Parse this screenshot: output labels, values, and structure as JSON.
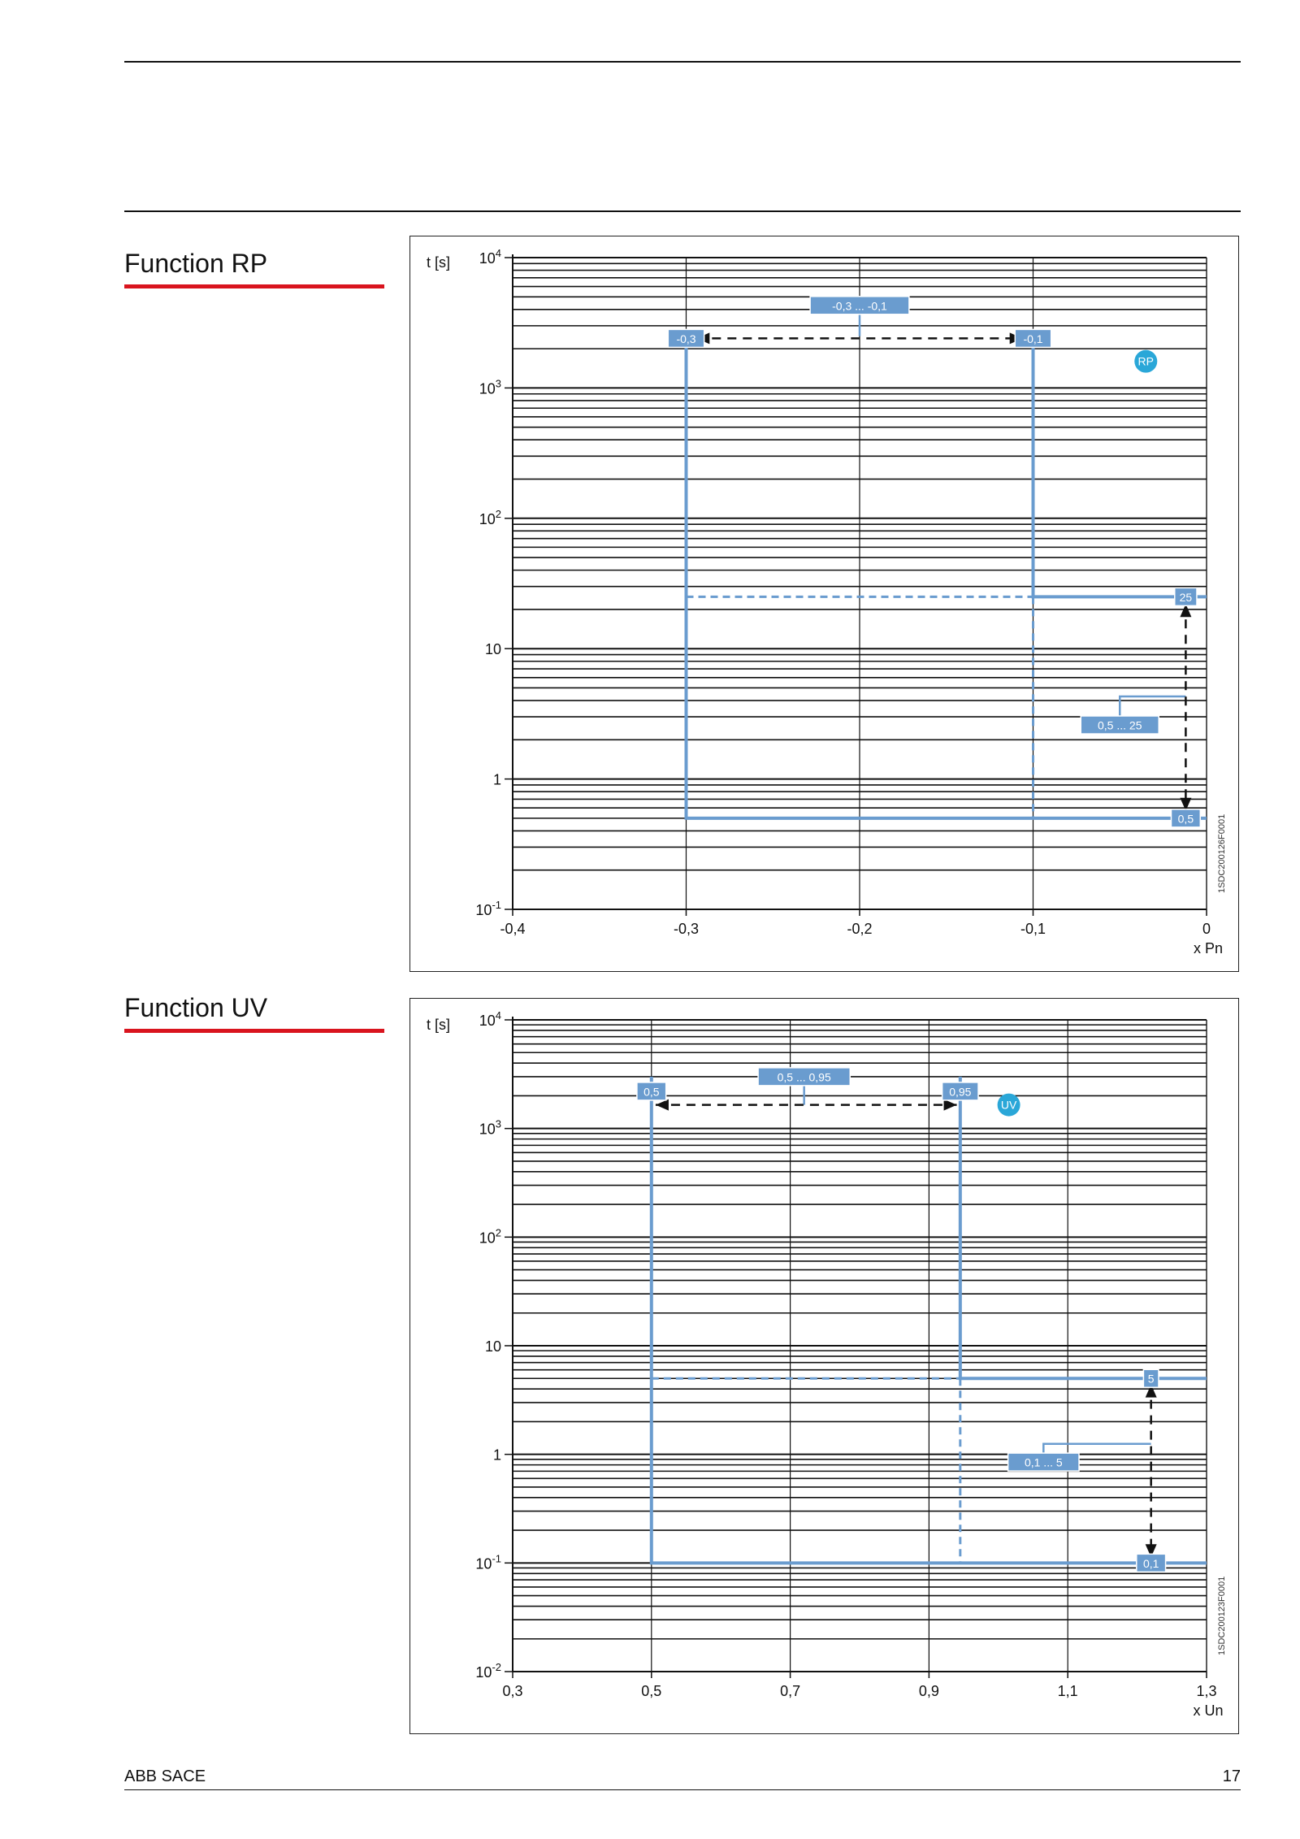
{
  "page": {
    "footer_left": "ABB SACE",
    "page_number": "17",
    "accent_color": "#d9141e",
    "curve_color": "#6a9ccf",
    "badge_color": "#2aa7d8"
  },
  "chart_data": [
    {
      "type": "line",
      "section_title": "Function RP",
      "ylabel": "t [s]",
      "xlabel": "x Pn",
      "x_scale": "linear",
      "y_scale": "log",
      "xlim": [
        -0.4,
        0
      ],
      "ylim": [
        0.1,
        10000
      ],
      "x_ticks": [
        -0.4,
        -0.3,
        -0.2,
        -0.1,
        0
      ],
      "x_tick_labels": [
        "-0,4",
        "-0,3",
        "-0,2",
        "-0,1",
        "0"
      ],
      "y_ticks": [
        {
          "value": 10000,
          "base": "10",
          "exp": "4"
        },
        {
          "value": 1000,
          "base": "10",
          "exp": "3"
        },
        {
          "value": 100,
          "base": "10",
          "exp": "2"
        },
        {
          "value": 10,
          "base": "10",
          "exp": ""
        },
        {
          "value": 1,
          "base": "1",
          "exp": ""
        },
        {
          "value": 0.1,
          "base": "10",
          "exp": "-1"
        }
      ],
      "badge": "RP",
      "badge_pos": {
        "x": -0.035,
        "y": 1600
      },
      "code": "1SDC200126F0001",
      "series": [
        {
          "style": "solid",
          "x": [
            -0.3,
            -0.3,
            0
          ],
          "y": [
            2500,
            0.5,
            0.5
          ]
        },
        {
          "style": "solid",
          "x": [
            -0.1,
            -0.1,
            0
          ],
          "y": [
            2500,
            25,
            25
          ]
        },
        {
          "style": "dashed",
          "x": [
            -0.3,
            -0.1
          ],
          "y": [
            25,
            25
          ]
        },
        {
          "style": "dashed",
          "x": [
            -0.1,
            -0.1
          ],
          "y": [
            25,
            0.5
          ]
        }
      ],
      "labels": [
        {
          "text": "-0,3 ... -0,1",
          "x": -0.2,
          "y": 4300
        },
        {
          "text": "-0,3",
          "x": -0.3,
          "y": 2400
        },
        {
          "text": "-0,1",
          "x": -0.1,
          "y": 2400
        },
        {
          "text": "25",
          "x": -0.012,
          "y": 25
        },
        {
          "text": "0,5 ... 25",
          "x": -0.05,
          "y": 2.6
        },
        {
          "text": "0,5",
          "x": -0.012,
          "y": 0.5
        }
      ],
      "leaders": [
        {
          "x": [
            -0.2,
            -0.2
          ],
          "y": [
            4000,
            2500
          ]
        },
        {
          "x": [
            -0.05,
            -0.05,
            -0.012
          ],
          "y": [
            2.9,
            4.3,
            4.3
          ]
        }
      ],
      "arrows": [
        {
          "x1": -0.294,
          "y1": 2400,
          "x2": -0.106,
          "y2": 2400
        },
        {
          "x1": -0.012,
          "y1": 22,
          "x2": -0.012,
          "y2": 0.57
        }
      ]
    },
    {
      "type": "line",
      "section_title": "Function UV",
      "ylabel": "t [s]",
      "xlabel": "x Un",
      "x_scale": "linear",
      "y_scale": "log",
      "xlim": [
        0.3,
        1.3
      ],
      "ylim": [
        0.01,
        10000
      ],
      "x_ticks": [
        0.3,
        0.5,
        0.7,
        0.9,
        1.1,
        1.3
      ],
      "x_tick_labels": [
        "0,3",
        "0,5",
        "0,7",
        "0,9",
        "1,1",
        "1,3"
      ],
      "y_ticks": [
        {
          "value": 10000,
          "base": "10",
          "exp": "4"
        },
        {
          "value": 1000,
          "base": "10",
          "exp": "3"
        },
        {
          "value": 100,
          "base": "10",
          "exp": "2"
        },
        {
          "value": 10,
          "base": "10",
          "exp": ""
        },
        {
          "value": 1,
          "base": "1",
          "exp": ""
        },
        {
          "value": 0.1,
          "base": "10",
          "exp": "-1"
        },
        {
          "value": 0.01,
          "base": "10",
          "exp": "-2"
        }
      ],
      "badge": "UV",
      "badge_pos": {
        "x": 1.015,
        "y": 1650
      },
      "code": "1SDC200123F0001",
      "series": [
        {
          "style": "solid",
          "x": [
            0.5,
            0.5,
            1.3
          ],
          "y": [
            3000,
            0.1,
            0.1
          ]
        },
        {
          "style": "solid",
          "x": [
            0.945,
            0.945,
            1.3
          ],
          "y": [
            3000,
            5,
            5
          ]
        },
        {
          "style": "dashed",
          "x": [
            0.5,
            0.945
          ],
          "y": [
            5,
            5
          ]
        },
        {
          "style": "dashed",
          "x": [
            0.945,
            0.945
          ],
          "y": [
            5,
            0.1
          ]
        }
      ],
      "labels": [
        {
          "text": "0,5 ... 0,95",
          "x": 0.72,
          "y": 3000
        },
        {
          "text": "0,5",
          "x": 0.5,
          "y": 2200
        },
        {
          "text": "0,95",
          "x": 0.945,
          "y": 2200
        },
        {
          "text": "5",
          "x": 1.22,
          "y": 5
        },
        {
          "text": "0,1 ... 5",
          "x": 1.065,
          "y": 0.85
        },
        {
          "text": "0,1",
          "x": 1.22,
          "y": 0.1
        }
      ],
      "leaders": [
        {
          "x": [
            0.72,
            0.72
          ],
          "y": [
            2700,
            1650
          ]
        },
        {
          "x": [
            1.065,
            1.065,
            1.22
          ],
          "y": [
            0.95,
            1.25,
            1.25
          ]
        }
      ],
      "arrows": [
        {
          "x1": 0.506,
          "y1": 1650,
          "x2": 0.94,
          "y2": 1650
        },
        {
          "x1": 1.22,
          "y1": 4.4,
          "x2": 1.22,
          "y2": 0.113
        }
      ]
    }
  ]
}
